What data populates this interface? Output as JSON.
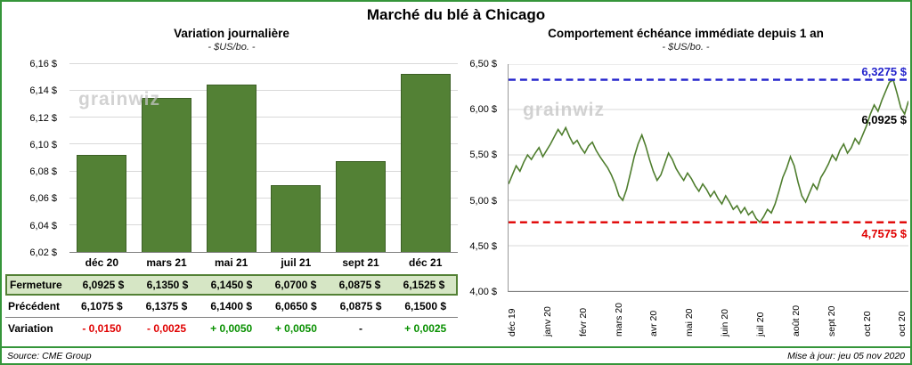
{
  "page": {
    "title": "Marché du blé à Chicago",
    "source": "Source: CME Group",
    "updated": "Mise à jour: jeu 05 nov 2020",
    "watermark": "grainwiz"
  },
  "colors": {
    "bar": "#538135",
    "line": "#4e7d2d",
    "max_line": "#2323cc",
    "min_line": "#e00000",
    "border": "#35953a",
    "highlight_row_bg": "#d6e6c5",
    "gridline": "#d9d9d9"
  },
  "chart_data": [
    {
      "type": "bar",
      "title": "Variation journalière",
      "subtitle": "- $US/bo. -",
      "categories": [
        "déc 20",
        "mars 21",
        "mai 21",
        "juil 21",
        "sept 21",
        "déc 21"
      ],
      "values": [
        6.0925,
        6.135,
        6.145,
        6.07,
        6.0875,
        6.1525
      ],
      "ylim": [
        6.02,
        6.16
      ],
      "yticks": [
        6.02,
        6.04,
        6.06,
        6.08,
        6.1,
        6.12,
        6.14,
        6.16
      ],
      "ytick_labels": [
        "6,02 $",
        "6,04 $",
        "6,06 $",
        "6,08 $",
        "6,10 $",
        "6,12 $",
        "6,14 $",
        "6,16 $"
      ],
      "grid": true,
      "legend": false
    },
    {
      "type": "line",
      "title": "Comportement échéance immédiate depuis 1 an",
      "subtitle": "- $US/bo. -",
      "x_labels": [
        "déc 19",
        "janv 20",
        "févr 20",
        "mars 20",
        "avr 20",
        "mai 20",
        "juin 20",
        "juil 20",
        "août 20",
        "sept 20",
        "oct 20",
        "oct 20"
      ],
      "ylim": [
        4.0,
        6.5
      ],
      "yticks": [
        4.0,
        4.5,
        5.0,
        5.5,
        6.0,
        6.5
      ],
      "ytick_labels": [
        "4,00 $",
        "4,50 $",
        "5,00 $",
        "5,50 $",
        "6,00 $",
        "6,50 $"
      ],
      "grid": true,
      "legend": false,
      "annotations": {
        "max": {
          "value": 6.3275,
          "label": "6,3275 $"
        },
        "last": {
          "value": 6.0925,
          "label": "6,0925 $"
        },
        "min": {
          "value": 4.7575,
          "label": "4,7575 $"
        }
      },
      "values": [
        5.18,
        5.28,
        5.38,
        5.32,
        5.42,
        5.5,
        5.45,
        5.52,
        5.58,
        5.48,
        5.55,
        5.62,
        5.7,
        5.78,
        5.72,
        5.8,
        5.7,
        5.62,
        5.66,
        5.58,
        5.52,
        5.6,
        5.64,
        5.55,
        5.48,
        5.42,
        5.36,
        5.28,
        5.18,
        5.05,
        5.0,
        5.12,
        5.3,
        5.48,
        5.62,
        5.72,
        5.6,
        5.45,
        5.32,
        5.22,
        5.28,
        5.4,
        5.52,
        5.45,
        5.35,
        5.28,
        5.22,
        5.3,
        5.24,
        5.16,
        5.1,
        5.18,
        5.12,
        5.04,
        5.1,
        5.02,
        4.96,
        5.05,
        4.98,
        4.9,
        4.94,
        4.86,
        4.92,
        4.84,
        4.88,
        4.8,
        4.7575,
        4.82,
        4.9,
        4.86,
        4.96,
        5.1,
        5.25,
        5.35,
        5.48,
        5.38,
        5.2,
        5.05,
        4.98,
        5.08,
        5.18,
        5.12,
        5.25,
        5.32,
        5.4,
        5.5,
        5.44,
        5.55,
        5.62,
        5.52,
        5.58,
        5.68,
        5.62,
        5.72,
        5.82,
        5.95,
        6.05,
        5.98,
        6.1,
        6.2,
        6.3,
        6.3275,
        6.18,
        6.02,
        5.95,
        6.0925
      ]
    }
  ],
  "table": {
    "rows": [
      {
        "label": "Fermeture",
        "highlight": true,
        "values": [
          {
            "text": "6,0925 $"
          },
          {
            "text": "6,1350 $"
          },
          {
            "text": "6,1450 $"
          },
          {
            "text": "6,0700 $"
          },
          {
            "text": "6,0875 $"
          },
          {
            "text": "6,1525 $"
          }
        ]
      },
      {
        "label": "Précédent",
        "values": [
          {
            "text": "6,1075 $"
          },
          {
            "text": "6,1375 $"
          },
          {
            "text": "6,1400 $"
          },
          {
            "text": "6,0650 $"
          },
          {
            "text": "6,0875 $"
          },
          {
            "text": "6,1500 $"
          }
        ]
      },
      {
        "label": "Variation",
        "divider": true,
        "values": [
          {
            "text": "- 0,0150",
            "tone": "neg"
          },
          {
            "text": "- 0,0025",
            "tone": "neg"
          },
          {
            "text": "+ 0,0050",
            "tone": "pos"
          },
          {
            "text": "+ 0,0050",
            "tone": "pos"
          },
          {
            "text": "-",
            "tone": "flat"
          },
          {
            "text": "+ 0,0025",
            "tone": "pos"
          }
        ]
      }
    ]
  }
}
